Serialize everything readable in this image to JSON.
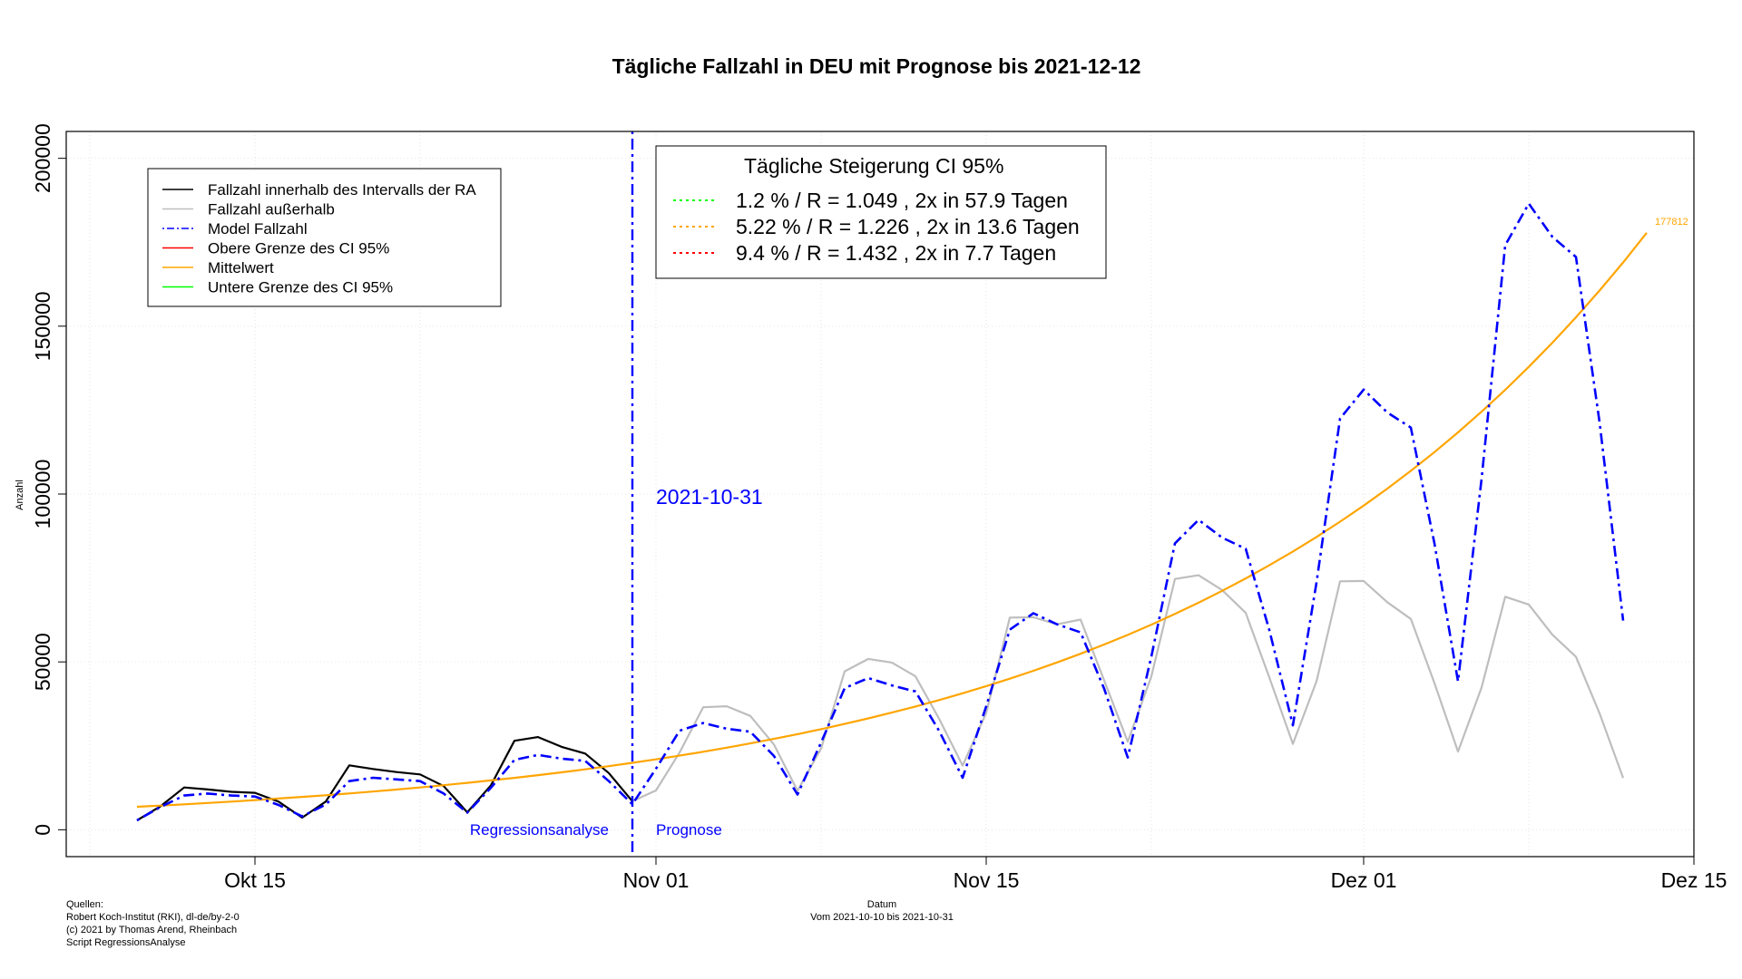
{
  "chart_data": {
    "type": "line",
    "title": "Tägliche Fallzahl in DEU mit Prognose bis 2021-12-12",
    "ylabel": "Anzahl",
    "xlabel": "Datum",
    "xlabel_sub": "Vom 2021-10-10 bis 2021-10-31",
    "x_start": "2021-10-10",
    "x_end": "2021-12-12",
    "xlim": [
      "2021-10-07",
      "2021-12-15"
    ],
    "ylim": [
      -8000,
      208000
    ],
    "x_ticks": [
      {
        "date": "2021-10-15",
        "label": "Okt 15"
      },
      {
        "date": "2021-11-01",
        "label": "Nov 01"
      },
      {
        "date": "2021-11-15",
        "label": "Nov 15"
      },
      {
        "date": "2021-12-01",
        "label": "Dez 01"
      },
      {
        "date": "2021-12-15",
        "label": "Dez 15"
      }
    ],
    "y_ticks": [
      0,
      50000,
      100000,
      150000,
      200000
    ],
    "grid": true,
    "vline": {
      "date": "2021-10-31",
      "label": "2021-10-31",
      "color": "#0000ff"
    },
    "region_labels": {
      "left": "Regressionsanalyse",
      "right": "Prognose"
    },
    "end_label": "177812",
    "series": [
      {
        "name": "Fallzahl innerhalb des Intervalls der RA",
        "color": "#000000",
        "style": "solid",
        "x_start": "2021-10-10",
        "values": [
          2800,
          7000,
          12600,
          12000,
          11300,
          11000,
          8400,
          3600,
          8400,
          19200,
          18100,
          17200,
          16500,
          13000,
          5200,
          13200,
          26500,
          27600,
          24700,
          22700,
          16900,
          8500
        ]
      },
      {
        "name": "Fallzahl außerhalb",
        "color": "#bebebe",
        "style": "solid",
        "x_start": "2021-10-31",
        "values": [
          8500,
          11700,
          23000,
          36500,
          36800,
          33900,
          25400,
          11600,
          24200,
          47200,
          50900,
          49800,
          45700,
          33100,
          19100,
          34800,
          63200,
          63300,
          61200,
          62600,
          44500,
          26200,
          45700,
          74700,
          75800,
          71400,
          64600,
          45400,
          25600,
          44200,
          74000,
          74100,
          67800,
          62800,
          43700,
          23300,
          42400,
          69400,
          67100,
          58100,
          51500,
          34700,
          15400
        ]
      },
      {
        "name": "Model Fallzahl",
        "color": "#0000ff",
        "style": "dotdash",
        "x_start": "2021-10-10",
        "values": [
          2800,
          6800,
          10200,
          10800,
          10200,
          9900,
          7400,
          4000,
          7500,
          14500,
          15500,
          15000,
          14500,
          10800,
          5100,
          12500,
          20800,
          22300,
          21200,
          20500,
          14500,
          7600,
          18200,
          29500,
          31800,
          30100,
          29200,
          22000,
          10500,
          26000,
          42200,
          45200,
          43000,
          41200,
          29500,
          15500,
          36800,
          59600,
          64500,
          61200,
          58800,
          42000,
          21500,
          51600,
          85300,
          92300,
          87000,
          83700,
          59500,
          31100,
          73600,
          122500,
          131100,
          124300,
          119800,
          85300,
          44200,
          104600,
          174100,
          186500,
          176600,
          170600,
          121400,
          62300
        ]
      },
      {
        "name": "Obere Grenze des CI 95%",
        "color": "#ff0000",
        "style": "solid",
        "values": []
      },
      {
        "name": "Mittelwert",
        "color": "#ffa500",
        "style": "solid",
        "x_start": "2021-10-10",
        "growth": {
          "end_date": "2021-12-13",
          "end_value": 177812,
          "daily_factor": 1.0522
        },
        "values": []
      },
      {
        "name": "Untere Grenze des CI 95%",
        "color": "#00ff00",
        "style": "solid",
        "values": []
      }
    ]
  },
  "ci_box": {
    "title": "Tägliche Steigerung CI  95%",
    "rows": [
      {
        "color": "#00ff00",
        "text": "1.2 % / R = 1.049 , 2x in 57.9 Tagen"
      },
      {
        "color": "#ffa500",
        "text": "5.22 % / R = 1.226 , 2x in 13.6 Tagen"
      },
      {
        "color": "#ff0000",
        "text": "9.4 % / R = 1.432 , 2x in 7.7 Tagen"
      }
    ]
  },
  "sources": {
    "line1": "Quellen:",
    "line2": "Robert Koch-Institut (RKI), dl-de/by-2-0",
    "line3": "(c) 2021 by Thomas Arend, Rheinbach",
    "line4": "Script RegressionsAnalyse"
  }
}
